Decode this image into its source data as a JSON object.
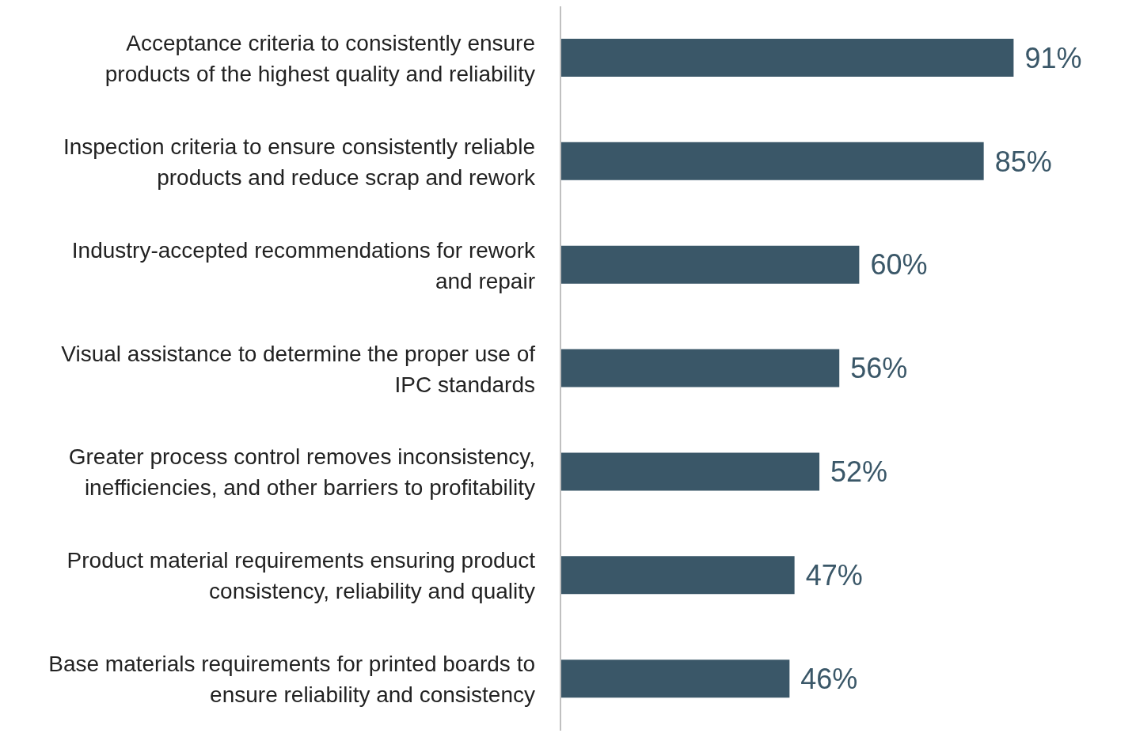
{
  "chart_data": {
    "type": "bar",
    "orientation": "horizontal",
    "categories": [
      "Acceptance criteria to consistently ensure products of the highest quality and reliability",
      "Inspection criteria to ensure consistently reliable products and reduce scrap and rework",
      "Industry-accepted recommendations for rework and repair",
      "Visual assistance to determine the proper use of IPC standards",
      "Greater process control removes inconsistency, inefficiencies, and other barriers to profitability",
      "Product material requirements ensuring product consistency, reliability and quality",
      "Base materials requirements for printed boards to ensure reliability and consistency"
    ],
    "values": [
      91,
      85,
      60,
      56,
      52,
      47,
      46
    ],
    "value_labels": [
      "91%",
      "85%",
      "60%",
      "56%",
      "52%",
      "47%",
      "46%"
    ],
    "color": "#3a5768",
    "tick_labels": "y",
    "grid": false,
    "legend": false
  }
}
